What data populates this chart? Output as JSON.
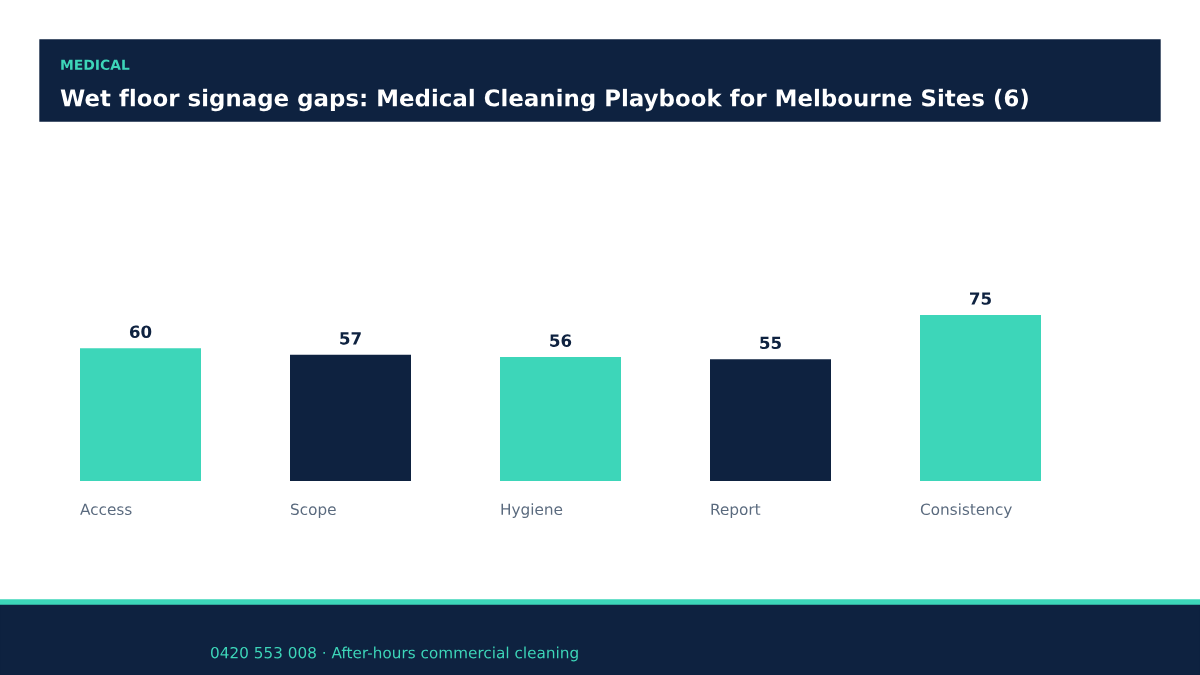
{
  "chart_data": {
    "type": "bar",
    "subtitle": "MEDICAL",
    "title": "Wet floor signage gaps: Medical Cleaning Playbook for Melbourne Sites (6)",
    "categories": [
      "Access",
      "Scope",
      "Hygiene",
      "Report",
      "Consistency"
    ],
    "values": [
      60,
      57,
      56,
      55,
      75
    ],
    "colors": [
      "#3dd6b9",
      "#0e2240",
      "#3dd6b9",
      "#0e2240",
      "#3dd6b9"
    ],
    "data_labels": true,
    "grid": false,
    "annotations": [
      "0420 553 008 · After-hours commercial cleaning"
    ]
  }
}
